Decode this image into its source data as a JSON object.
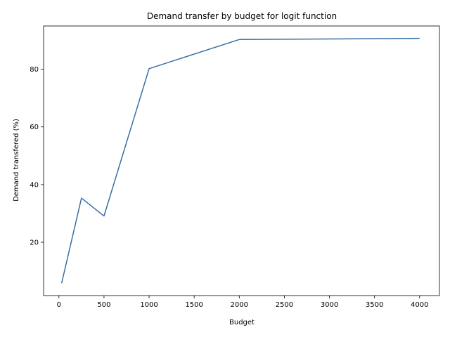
{
  "chart_data": {
    "type": "line",
    "title": "Demand transfer by budget for logit function",
    "xlabel": "Budget",
    "ylabel": "Demand transfered (%)",
    "xlim": [
      -170,
      4220
    ],
    "ylim": [
      1.5,
      95
    ],
    "xticks": [
      0,
      500,
      1000,
      1500,
      2000,
      2500,
      3000,
      3500,
      4000
    ],
    "yticks": [
      20,
      40,
      60,
      80
    ],
    "grid": false,
    "series": [
      {
        "x": [
          30,
          250,
          500,
          1000,
          2000,
          4000
        ],
        "y": [
          5.8,
          35.3,
          29.1,
          80.2,
          90.3,
          90.7
        ],
        "color": "#3a6ea5"
      }
    ]
  }
}
